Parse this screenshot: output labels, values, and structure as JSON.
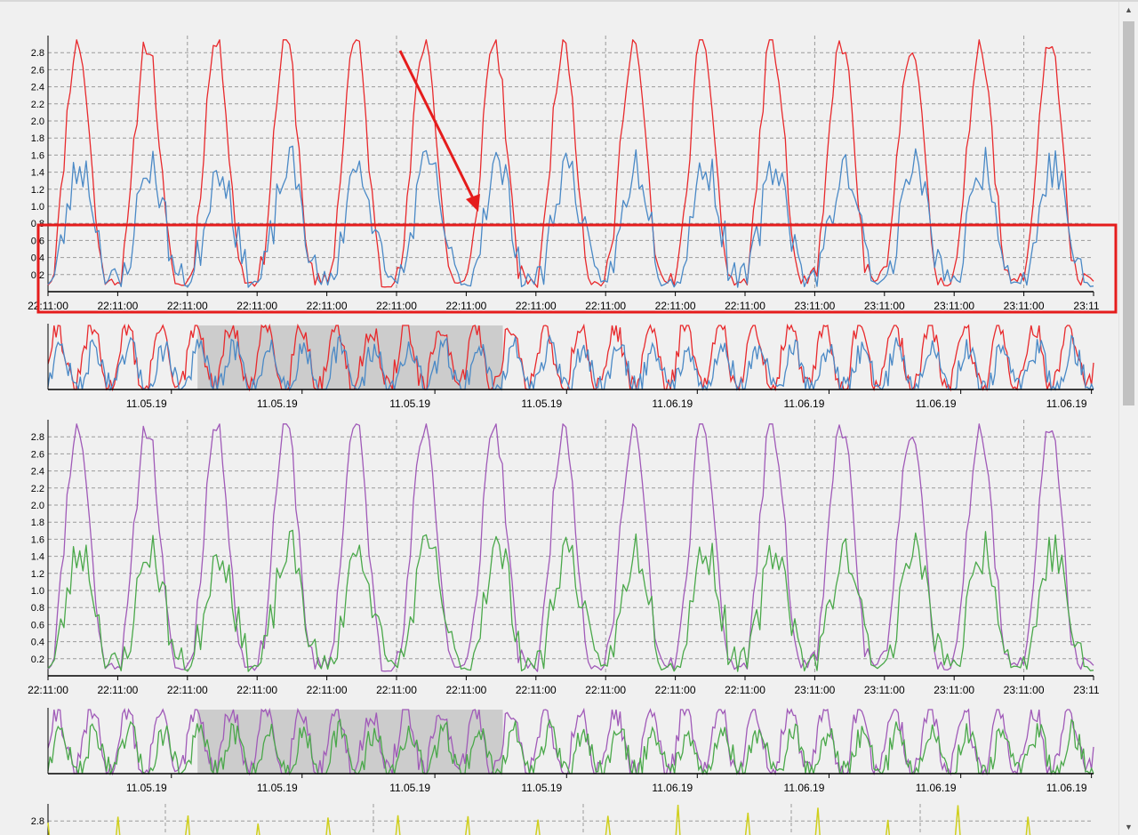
{
  "scrollbar": {
    "up_arrow": "▲",
    "down_arrow": "▼"
  },
  "colors": {
    "red": "#e8292c",
    "blue": "#4a89c6",
    "purple": "#a05ab8",
    "green": "#4aa84a",
    "yellow": "#cfcf1c",
    "highlight_box": "#e51c1c",
    "arrow": "#e51c1c",
    "brush": "#a8a8a8"
  },
  "chart_data": [
    {
      "type": "line",
      "ylim": [
        0,
        3.0
      ],
      "yticks": [
        "0.2",
        "0.4",
        "0.6",
        "0.8",
        "1.0",
        "1.2",
        "1.4",
        "1.6",
        "1.8",
        "2.0",
        "2.2",
        "2.4",
        "2.6",
        "2.8"
      ],
      "xticks": [
        "22:11:00",
        "22:11:00",
        "22:11:00",
        "22:11:00",
        "22:11:00",
        "22:11:00",
        "22:11:00",
        "22:11:00",
        "22:11:00",
        "22:11:00",
        "22:11:00",
        "23:11:00",
        "23:11:00",
        "23:11:00",
        "23:11:00",
        "23:11"
      ],
      "grid": true,
      "series": [
        {
          "color": "red",
          "min": 0.05,
          "max": 2.95,
          "style": "peak"
        },
        {
          "color": "blue",
          "min": 0.05,
          "max": 1.95,
          "style": "noisy"
        }
      ],
      "annotations": {
        "highlight_box": "around y range 0 to 0.8",
        "arrow": "pointing down to the highlighted band"
      }
    },
    {
      "type": "line",
      "role": "overview",
      "xticks": [
        "11.05.19",
        "11.05.19",
        "11.05.19",
        "11.05.19",
        "11.06.19",
        "11.06.19",
        "11.06.19",
        "11.06.19"
      ],
      "brush": "selected range covers the left portion",
      "series": [
        {
          "color": "red"
        },
        {
          "color": "blue"
        }
      ]
    },
    {
      "type": "line",
      "ylim": [
        0,
        3.0
      ],
      "yticks": [
        "0.2",
        "0.4",
        "0.6",
        "0.8",
        "1.0",
        "1.2",
        "1.4",
        "1.6",
        "1.8",
        "2.0",
        "2.2",
        "2.4",
        "2.6",
        "2.8"
      ],
      "xticks": [
        "22:11:00",
        "22:11:00",
        "22:11:00",
        "22:11:00",
        "22:11:00",
        "22:11:00",
        "22:11:00",
        "22:11:00",
        "22:11:00",
        "22:11:00",
        "22:11:00",
        "23:11:00",
        "23:11:00",
        "23:11:00",
        "23:11:00",
        "23:11"
      ],
      "grid": true,
      "series": [
        {
          "color": "purple",
          "min": 0.05,
          "max": 2.95,
          "style": "peak"
        },
        {
          "color": "green",
          "min": 0.05,
          "max": 1.95,
          "style": "noisy"
        }
      ]
    },
    {
      "type": "line",
      "role": "overview",
      "xticks": [
        "11.05.19",
        "11.05.19",
        "11.05.19",
        "11.05.19",
        "11.06.19",
        "11.06.19",
        "11.06.19",
        "11.06.19"
      ],
      "brush": "selected range covers the left portion",
      "series": [
        {
          "color": "purple"
        },
        {
          "color": "green"
        }
      ]
    },
    {
      "type": "line",
      "ylim": [
        0,
        3.0
      ],
      "yticks": [
        "2.8"
      ],
      "grid": true,
      "series": [
        {
          "color": "yellow",
          "style": "spikes"
        }
      ]
    }
  ]
}
